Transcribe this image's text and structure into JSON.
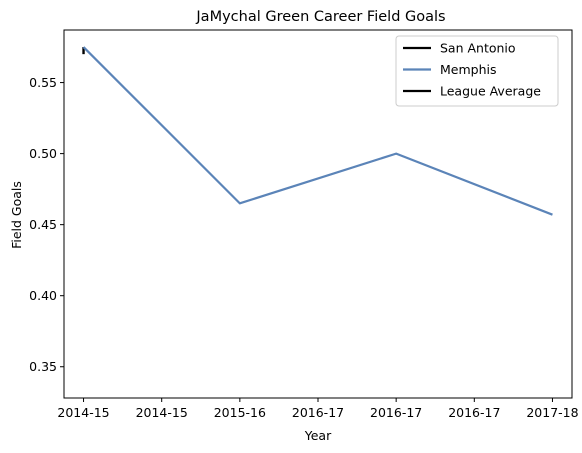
{
  "chart_data": {
    "type": "line",
    "title": "JaMychal Green Career Field Goals",
    "xlabel": "Year",
    "ylabel": "Field Goals",
    "x_tick_labels": [
      "2014-15",
      "2014-15",
      "2015-16",
      "2016-17",
      "2016-17",
      "2016-17",
      "2017-18"
    ],
    "y_ticks": [
      0.35,
      0.4,
      0.45,
      0.5,
      0.55
    ],
    "y_tick_labels": [
      "0.35",
      "0.40",
      "0.45",
      "0.50",
      "0.55"
    ],
    "xlim": [
      -0.25,
      6.25
    ],
    "ylim": [
      0.328,
      0.587
    ],
    "grid": false,
    "legend_position": "top-right",
    "series": [
      {
        "name": "San Antonio",
        "color": "#000000",
        "x": [
          0,
          0
        ],
        "y": [
          0.57,
          0.575
        ]
      },
      {
        "name": "Memphis",
        "color": "#5b84b8",
        "x": [
          0,
          2,
          4,
          6
        ],
        "y": [
          0.575,
          0.465,
          0.5,
          0.457
        ]
      },
      {
        "name": "League Average",
        "color": "#000000",
        "x": [],
        "y": []
      }
    ]
  }
}
